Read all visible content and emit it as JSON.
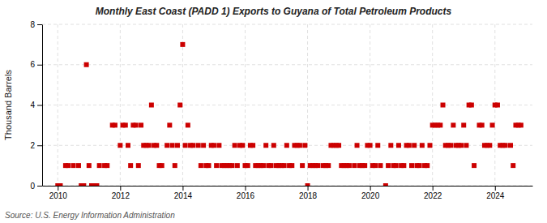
{
  "chart_data": {
    "type": "scatter",
    "title": "Monthly East Coast (PADD 1) Exports to Guyana of Total Petroleum Products",
    "y_label": "Thousand Barrels",
    "annotations": [
      "Source: U.S. Energy Information Administration"
    ],
    "color": "#cc0000",
    "marker": "square",
    "grid": true,
    "xlim": [
      2009.5,
      2025.2
    ],
    "xticks": [
      2010,
      2012,
      2014,
      2016,
      2018,
      2020,
      2022,
      2024
    ],
    "ylim": [
      0,
      8
    ],
    "yticks": [
      0,
      2,
      4,
      6,
      8
    ],
    "x": [
      2010.0,
      2010.083,
      2010.25,
      2010.333,
      2010.5,
      2010.667,
      2010.75,
      2010.833,
      2010.917,
      2011.0,
      2011.083,
      2011.167,
      2011.25,
      2011.333,
      2011.5,
      2011.583,
      2011.75,
      2011.833,
      2012.0,
      2012.083,
      2012.167,
      2012.25,
      2012.333,
      2012.417,
      2012.5,
      2012.583,
      2012.667,
      2012.75,
      2012.833,
      2012.917,
      2013.0,
      2013.083,
      2013.167,
      2013.25,
      2013.333,
      2013.5,
      2013.583,
      2013.667,
      2013.75,
      2013.833,
      2013.917,
      2014.0,
      2014.083,
      2014.167,
      2014.25,
      2014.333,
      2014.5,
      2014.583,
      2014.667,
      2014.75,
      2014.833,
      2014.917,
      2015.0,
      2015.083,
      2015.167,
      2015.25,
      2015.333,
      2015.417,
      2015.5,
      2015.583,
      2015.667,
      2015.75,
      2015.833,
      2015.917,
      2016.0,
      2016.083,
      2016.167,
      2016.25,
      2016.333,
      2016.417,
      2016.5,
      2016.583,
      2016.667,
      2016.75,
      2016.833,
      2016.917,
      2017.0,
      2017.083,
      2017.167,
      2017.25,
      2017.333,
      2017.417,
      2017.5,
      2017.583,
      2017.667,
      2017.75,
      2017.833,
      2017.917,
      2018.0,
      2018.083,
      2018.167,
      2018.25,
      2018.333,
      2018.5,
      2018.583,
      2018.667,
      2018.75,
      2018.833,
      2018.917,
      2019.0,
      2019.083,
      2019.167,
      2019.25,
      2019.333,
      2019.5,
      2019.583,
      2019.667,
      2019.75,
      2019.833,
      2019.917,
      2020.0,
      2020.083,
      2020.167,
      2020.25,
      2020.333,
      2020.5,
      2020.583,
      2020.667,
      2020.75,
      2020.833,
      2020.917,
      2021.0,
      2021.083,
      2021.167,
      2021.25,
      2021.333,
      2021.417,
      2021.5,
      2021.583,
      2021.667,
      2021.75,
      2021.833,
      2021.917,
      2022.0,
      2022.083,
      2022.167,
      2022.25,
      2022.333,
      2022.417,
      2022.5,
      2022.583,
      2022.667,
      2022.75,
      2022.833,
      2022.917,
      2023.0,
      2023.083,
      2023.167,
      2023.25,
      2023.333,
      2023.5,
      2023.583,
      2023.667,
      2023.75,
      2023.833,
      2023.917,
      2024.0,
      2024.083,
      2024.167,
      2024.25,
      2024.333,
      2024.5,
      2024.583,
      2024.667,
      2024.75,
      2024.833
    ],
    "values": [
      0,
      0,
      1,
      1,
      1,
      1,
      0,
      0,
      6,
      1,
      0,
      0,
      0,
      1,
      1,
      1,
      3,
      3,
      2,
      3,
      3,
      2,
      1,
      3,
      3,
      1,
      3,
      2,
      2,
      2,
      4,
      2,
      2,
      1,
      1,
      2,
      3,
      2,
      1,
      2,
      4,
      7,
      2,
      3,
      2,
      2,
      2,
      1,
      2,
      1,
      1,
      2,
      2,
      1,
      2,
      1,
      1,
      1,
      1,
      1,
      2,
      1,
      2,
      2,
      1,
      1,
      2,
      2,
      1,
      1,
      1,
      1,
      2,
      1,
      1,
      2,
      1,
      1,
      1,
      1,
      2,
      1,
      1,
      2,
      2,
      2,
      1,
      2,
      0,
      1,
      1,
      1,
      1,
      1,
      1,
      1,
      2,
      2,
      2,
      2,
      1,
      1,
      1,
      1,
      1,
      2,
      1,
      1,
      1,
      2,
      2,
      1,
      1,
      2,
      1,
      0,
      1,
      2,
      1,
      1,
      2,
      1,
      1,
      2,
      2,
      1,
      2,
      1,
      1,
      2,
      1,
      1,
      2,
      3,
      3,
      3,
      3,
      4,
      2,
      2,
      2,
      3,
      2,
      2,
      2,
      3,
      2,
      4,
      4,
      1,
      3,
      3,
      2,
      2,
      2,
      3,
      4,
      4,
      2,
      2,
      2,
      2,
      1,
      3,
      3,
      3
    ]
  }
}
